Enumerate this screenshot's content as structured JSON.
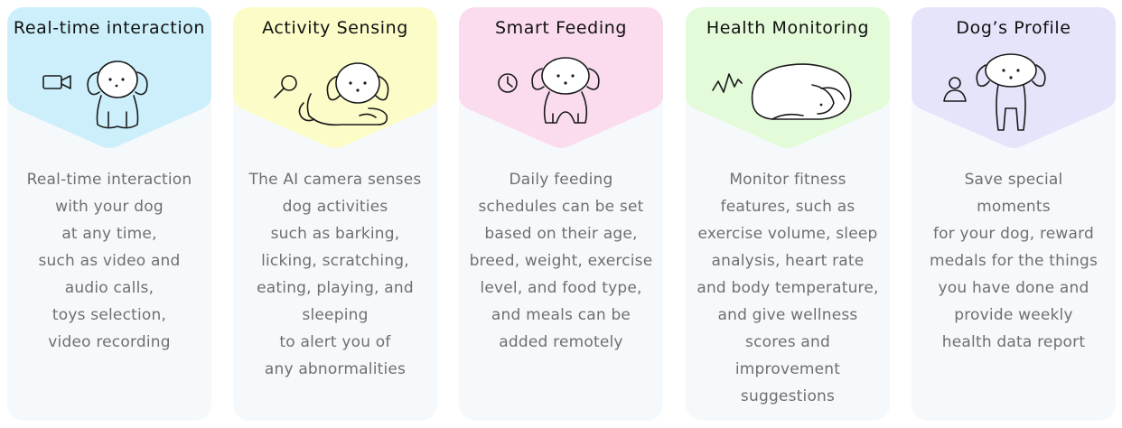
{
  "cards": [
    {
      "title": "Real-time interaction",
      "color": "#cdeffb",
      "icon": "video-camera-icon",
      "illustration": "sitting-dog-illustration",
      "lines": [
        "Real-time interaction",
        "with your dog",
        "at any time,",
        "such as video and",
        "audio calls,",
        "toys selection,",
        "video recording"
      ]
    },
    {
      "title": "Activity Sensing",
      "color": "#fbfcc8",
      "icon": "magnifier-icon",
      "illustration": "lying-dog-illustration",
      "lines": [
        "The AI camera senses",
        "dog activities",
        "such as barking,",
        "licking, scratching,",
        "eating, playing, and",
        "sleeping",
        "to alert you of",
        "any abnormalities"
      ]
    },
    {
      "title": "Smart Feeding",
      "color": "#fbdcef",
      "icon": "clock-icon",
      "illustration": "eating-dog-illustration",
      "lines": [
        "Daily feeding",
        "schedules can be set",
        "based on their age,",
        "breed, weight, exercise",
        "level, and food type,",
        "and meals can be",
        "added remotely"
      ]
    },
    {
      "title": "Health Monitoring",
      "color": "#e3fbd8",
      "icon": "heartbeat-icon",
      "illustration": "sleeping-dog-illustration",
      "lines": [
        "Monitor fitness",
        "features, such as",
        "exercise volume, sleep",
        "analysis, heart rate",
        "and body temperature,",
        "and give wellness",
        "scores and",
        "improvement",
        "suggestions"
      ]
    },
    {
      "title": "Dog’s Profile",
      "color": "#e6e4fb",
      "icon": "user-icon",
      "illustration": "standing-dog-illustration",
      "lines": [
        "Save special",
        "moments",
        "for your dog, reward",
        "medals for the things",
        "you have done and",
        "provide weekly",
        "health data report"
      ]
    }
  ]
}
